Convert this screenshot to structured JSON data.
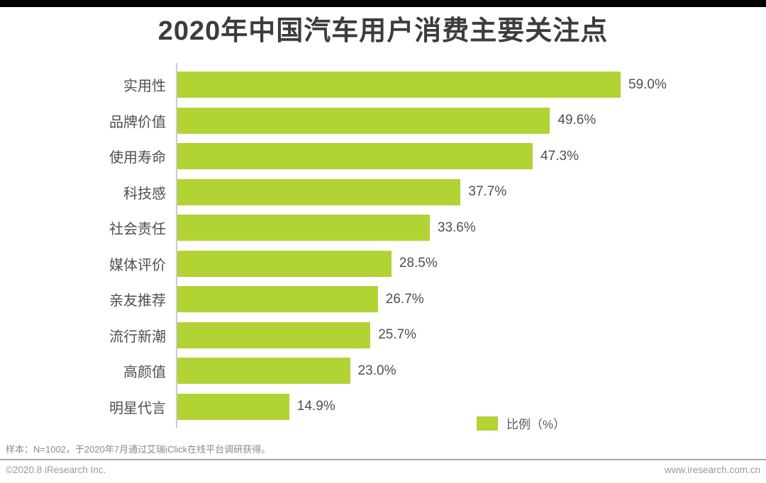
{
  "page": {
    "title": "2020年中国汽车用户消费主要关注点",
    "footnote": "样本：N=1002，于2020年7月通过艾瑞iClick在线平台调研获得。",
    "copyright": "©2020.8 iResearch Inc.",
    "website": "www.iresearch.com.cn"
  },
  "colors": {
    "bar": "#b1d334",
    "title_text": "#3c3c3c",
    "label_text": "#4f4f4f",
    "axis_line": "#cccccc",
    "top_bar": "#000000"
  },
  "chart_data": {
    "type": "bar",
    "orientation": "horizontal",
    "title": "2020年中国汽车用户消费主要关注点",
    "categories": [
      "实用性",
      "品牌价值",
      "使用寿命",
      "科技感",
      "社会责任",
      "媒体评价",
      "亲友推荐",
      "流行新潮",
      "高颜值",
      "明星代言"
    ],
    "values": [
      59.0,
      49.6,
      47.3,
      37.7,
      33.6,
      28.5,
      26.7,
      25.7,
      23.0,
      14.9
    ],
    "value_labels": [
      "59.0%",
      "49.6%",
      "47.3%",
      "37.7%",
      "33.6%",
      "28.5%",
      "26.7%",
      "25.7%",
      "23.0%",
      "14.9%"
    ],
    "xlabel": "",
    "ylabel": "",
    "xlim": [
      0,
      62
    ],
    "grid": false,
    "legend": [
      {
        "label": "比例（%）",
        "color": "#b1d334"
      }
    ],
    "legend_position": "bottom-right"
  }
}
